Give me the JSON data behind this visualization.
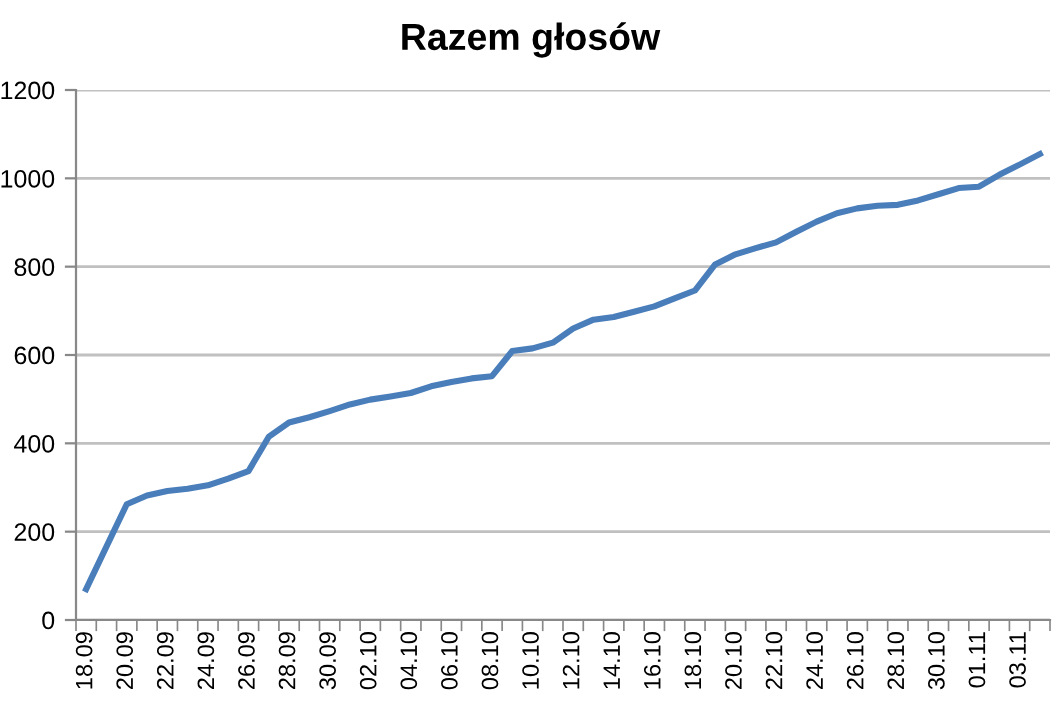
{
  "chart_data": {
    "type": "line",
    "title": "Razem głosów",
    "categories": [
      "18.09",
      null,
      "20.09",
      null,
      "22.09",
      null,
      "24.09",
      null,
      "26.09",
      null,
      "28.09",
      null,
      "30.09",
      null,
      "02.10",
      null,
      "04.10",
      null,
      "06.10",
      null,
      "08.10",
      null,
      "10.10",
      null,
      "12.10",
      null,
      "14.10",
      null,
      "16.10",
      null,
      "18.10",
      null,
      "20.10",
      null,
      "22.10",
      null,
      "24.10",
      null,
      "26.10",
      null,
      "28.10",
      null,
      "30.10",
      null,
      "01.11",
      null,
      "03.11",
      null
    ],
    "series": [
      {
        "color": "#4a7ebb",
        "values": [
          70,
          166,
          262,
          282,
          292,
          297,
          305,
          320,
          337,
          415,
          447,
          459,
          473,
          488,
          499,
          506,
          514,
          529,
          539,
          547,
          552,
          609,
          615,
          628,
          660,
          680,
          686,
          698,
          710,
          728,
          746,
          805,
          828,
          842,
          855,
          879,
          902,
          921,
          932,
          938,
          940,
          950,
          964,
          978,
          981,
          1008,
          1031,
          1055
        ]
      }
    ],
    "ylim": [
      0,
      1200
    ],
    "yticks": [
      0,
      200,
      400,
      600,
      800,
      1000,
      1200
    ],
    "grid": "y",
    "legend": false,
    "marker": "none",
    "line_style": "solid"
  }
}
